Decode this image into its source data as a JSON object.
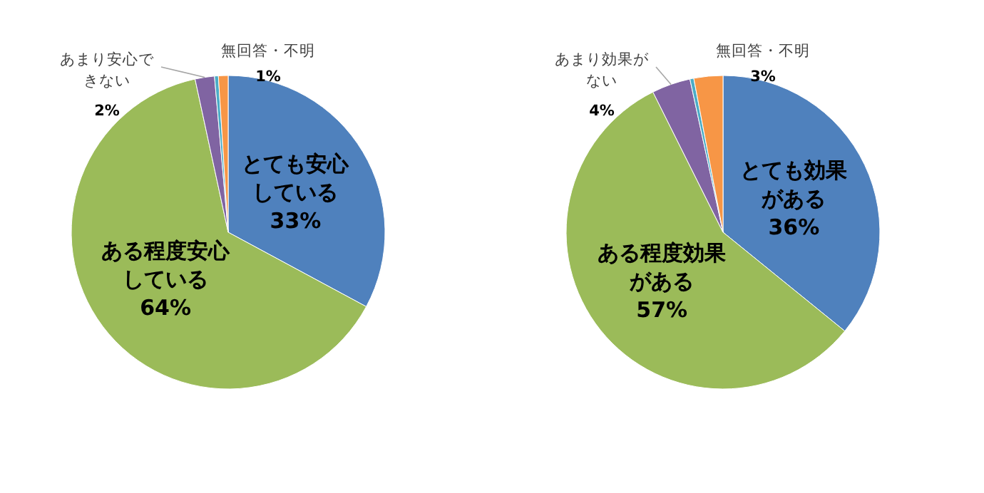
{
  "chart_data": [
    {
      "type": "pie",
      "categories": [
        "とても安心している",
        "ある程度安心している",
        "あまり安心できない",
        null,
        "無回答・不明"
      ],
      "values": [
        33,
        64,
        2,
        0.4,
        1
      ],
      "colors": [
        "#4f81bd",
        "#9bbb59",
        "#8064a2",
        "#4bacc6",
        "#f79646"
      ],
      "value_labels": [
        "33%",
        "64%",
        "2%",
        null,
        "1%"
      ]
    },
    {
      "type": "pie",
      "categories": [
        "とても効果がある",
        "ある程度効果がある",
        "あまり効果がない",
        null,
        "無回答・不明"
      ],
      "values": [
        36,
        57,
        4,
        0.4,
        3
      ],
      "colors": [
        "#4f81bd",
        "#9bbb59",
        "#8064a2",
        "#4bacc6",
        "#f79646"
      ],
      "value_labels": [
        "36%",
        "57%",
        "4%",
        null,
        "3%"
      ]
    }
  ]
}
